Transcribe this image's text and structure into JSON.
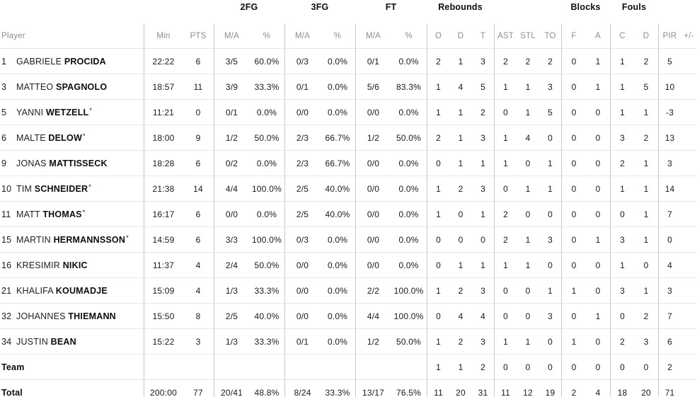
{
  "table": {
    "star_mark": "*",
    "groups": {
      "fg2": "2FG",
      "fg3": "3FG",
      "ft": "FT",
      "rebounds": "Rebounds",
      "blocks": "Blocks",
      "fouls": "Fouls"
    },
    "headers": {
      "player": "Player",
      "min": "Min",
      "pts": "PTS",
      "ma": "M/A",
      "pct": "%",
      "reb_o": "O",
      "reb_d": "D",
      "reb_t": "T",
      "ast": "AST",
      "stl": "STL",
      "to": "TO",
      "blk_f": "F",
      "blk_a": "A",
      "foul_c": "C",
      "foul_d": "D",
      "pir": "PIR",
      "pm": "+/-"
    },
    "rows": [
      {
        "type": "player",
        "num": "1",
        "first": "GABRIELE",
        "last": "PROCIDA",
        "star": false,
        "min": "22:22",
        "pts": "6",
        "fg2_ma": "3/5",
        "fg2_pct": "60.0%",
        "fg3_ma": "0/3",
        "fg3_pct": "0.0%",
        "ft_ma": "0/1",
        "ft_pct": "0.0%",
        "reb_o": "2",
        "reb_d": "1",
        "reb_t": "3",
        "ast": "2",
        "stl": "2",
        "to": "2",
        "blk_f": "0",
        "blk_a": "1",
        "foul_c": "1",
        "foul_d": "2",
        "pir": "5",
        "pm": ""
      },
      {
        "type": "player",
        "num": "3",
        "first": "MATTEO",
        "last": "SPAGNOLO",
        "star": false,
        "min": "18:57",
        "pts": "11",
        "fg2_ma": "3/9",
        "fg2_pct": "33.3%",
        "fg3_ma": "0/1",
        "fg3_pct": "0.0%",
        "ft_ma": "5/6",
        "ft_pct": "83.3%",
        "reb_o": "1",
        "reb_d": "4",
        "reb_t": "5",
        "ast": "1",
        "stl": "1",
        "to": "3",
        "blk_f": "0",
        "blk_a": "1",
        "foul_c": "1",
        "foul_d": "5",
        "pir": "10",
        "pm": ""
      },
      {
        "type": "player",
        "num": "5",
        "first": "YANNI",
        "last": "WETZELL",
        "star": true,
        "min": "11:21",
        "pts": "0",
        "fg2_ma": "0/1",
        "fg2_pct": "0.0%",
        "fg3_ma": "0/0",
        "fg3_pct": "0.0%",
        "ft_ma": "0/0",
        "ft_pct": "0.0%",
        "reb_o": "1",
        "reb_d": "1",
        "reb_t": "2",
        "ast": "0",
        "stl": "1",
        "to": "5",
        "blk_f": "0",
        "blk_a": "0",
        "foul_c": "1",
        "foul_d": "1",
        "pir": "-3",
        "pm": ""
      },
      {
        "type": "player",
        "num": "6",
        "first": "MALTE",
        "last": "DELOW",
        "star": true,
        "min": "18:00",
        "pts": "9",
        "fg2_ma": "1/2",
        "fg2_pct": "50.0%",
        "fg3_ma": "2/3",
        "fg3_pct": "66.7%",
        "ft_ma": "1/2",
        "ft_pct": "50.0%",
        "reb_o": "2",
        "reb_d": "1",
        "reb_t": "3",
        "ast": "1",
        "stl": "4",
        "to": "0",
        "blk_f": "0",
        "blk_a": "0",
        "foul_c": "3",
        "foul_d": "2",
        "pir": "13",
        "pm": ""
      },
      {
        "type": "player",
        "num": "9",
        "first": "JONAS",
        "last": "MATTISSECK",
        "star": false,
        "min": "18:28",
        "pts": "6",
        "fg2_ma": "0/2",
        "fg2_pct": "0.0%",
        "fg3_ma": "2/3",
        "fg3_pct": "66.7%",
        "ft_ma": "0/0",
        "ft_pct": "0.0%",
        "reb_o": "0",
        "reb_d": "1",
        "reb_t": "1",
        "ast": "1",
        "stl": "0",
        "to": "1",
        "blk_f": "0",
        "blk_a": "0",
        "foul_c": "2",
        "foul_d": "1",
        "pir": "3",
        "pm": ""
      },
      {
        "type": "player",
        "num": "10",
        "first": "TIM",
        "last": "SCHNEIDER",
        "star": true,
        "min": "21:38",
        "pts": "14",
        "fg2_ma": "4/4",
        "fg2_pct": "100.0%",
        "fg3_ma": "2/5",
        "fg3_pct": "40.0%",
        "ft_ma": "0/0",
        "ft_pct": "0.0%",
        "reb_o": "1",
        "reb_d": "2",
        "reb_t": "3",
        "ast": "0",
        "stl": "1",
        "to": "1",
        "blk_f": "0",
        "blk_a": "0",
        "foul_c": "1",
        "foul_d": "1",
        "pir": "14",
        "pm": ""
      },
      {
        "type": "player",
        "num": "11",
        "first": "MATT",
        "last": "THOMAS",
        "star": true,
        "min": "16:17",
        "pts": "6",
        "fg2_ma": "0/0",
        "fg2_pct": "0.0%",
        "fg3_ma": "2/5",
        "fg3_pct": "40.0%",
        "ft_ma": "0/0",
        "ft_pct": "0.0%",
        "reb_o": "1",
        "reb_d": "0",
        "reb_t": "1",
        "ast": "2",
        "stl": "0",
        "to": "0",
        "blk_f": "0",
        "blk_a": "0",
        "foul_c": "0",
        "foul_d": "1",
        "pir": "7",
        "pm": ""
      },
      {
        "type": "player",
        "num": "15",
        "first": "MARTIN",
        "last": "HERMANNSSON",
        "star": true,
        "min": "14:59",
        "pts": "6",
        "fg2_ma": "3/3",
        "fg2_pct": "100.0%",
        "fg3_ma": "0/3",
        "fg3_pct": "0.0%",
        "ft_ma": "0/0",
        "ft_pct": "0.0%",
        "reb_o": "0",
        "reb_d": "0",
        "reb_t": "0",
        "ast": "2",
        "stl": "1",
        "to": "3",
        "blk_f": "0",
        "blk_a": "1",
        "foul_c": "3",
        "foul_d": "1",
        "pir": "0",
        "pm": ""
      },
      {
        "type": "player",
        "num": "16",
        "first": "KRESIMIR",
        "last": "NIKIC",
        "star": false,
        "min": "11:37",
        "pts": "4",
        "fg2_ma": "2/4",
        "fg2_pct": "50.0%",
        "fg3_ma": "0/0",
        "fg3_pct": "0.0%",
        "ft_ma": "0/0",
        "ft_pct": "0.0%",
        "reb_o": "0",
        "reb_d": "1",
        "reb_t": "1",
        "ast": "1",
        "stl": "1",
        "to": "0",
        "blk_f": "0",
        "blk_a": "0",
        "foul_c": "1",
        "foul_d": "0",
        "pir": "4",
        "pm": ""
      },
      {
        "type": "player",
        "num": "21",
        "first": "KHALIFA",
        "last": "KOUMADJE",
        "star": false,
        "min": "15:09",
        "pts": "4",
        "fg2_ma": "1/3",
        "fg2_pct": "33.3%",
        "fg3_ma": "0/0",
        "fg3_pct": "0.0%",
        "ft_ma": "2/2",
        "ft_pct": "100.0%",
        "reb_o": "1",
        "reb_d": "2",
        "reb_t": "3",
        "ast": "0",
        "stl": "0",
        "to": "1",
        "blk_f": "1",
        "blk_a": "0",
        "foul_c": "3",
        "foul_d": "1",
        "pir": "3",
        "pm": ""
      },
      {
        "type": "player",
        "num": "32",
        "first": "JOHANNES",
        "last": "THIEMANN",
        "star": false,
        "min": "15:50",
        "pts": "8",
        "fg2_ma": "2/5",
        "fg2_pct": "40.0%",
        "fg3_ma": "0/0",
        "fg3_pct": "0.0%",
        "ft_ma": "4/4",
        "ft_pct": "100.0%",
        "reb_o": "0",
        "reb_d": "4",
        "reb_t": "4",
        "ast": "0",
        "stl": "0",
        "to": "3",
        "blk_f": "0",
        "blk_a": "1",
        "foul_c": "0",
        "foul_d": "2",
        "pir": "7",
        "pm": ""
      },
      {
        "type": "player",
        "num": "34",
        "first": "JUSTIN",
        "last": "BEAN",
        "star": false,
        "min": "15:22",
        "pts": "3",
        "fg2_ma": "1/3",
        "fg2_pct": "33.3%",
        "fg3_ma": "0/1",
        "fg3_pct": "0.0%",
        "ft_ma": "1/2",
        "ft_pct": "50.0%",
        "reb_o": "1",
        "reb_d": "2",
        "reb_t": "3",
        "ast": "1",
        "stl": "1",
        "to": "0",
        "blk_f": "1",
        "blk_a": "0",
        "foul_c": "2",
        "foul_d": "3",
        "pir": "6",
        "pm": ""
      },
      {
        "type": "team",
        "label": "Team",
        "min": "",
        "pts": "",
        "fg2_ma": "",
        "fg2_pct": "",
        "fg3_ma": "",
        "fg3_pct": "",
        "ft_ma": "",
        "ft_pct": "",
        "reb_o": "1",
        "reb_d": "1",
        "reb_t": "2",
        "ast": "0",
        "stl": "0",
        "to": "0",
        "blk_f": "0",
        "blk_a": "0",
        "foul_c": "0",
        "foul_d": "0",
        "pir": "2",
        "pm": ""
      },
      {
        "type": "total",
        "label": "Total",
        "min": "200:00",
        "pts": "77",
        "fg2_ma": "20/41",
        "fg2_pct": "48.8%",
        "fg3_ma": "8/24",
        "fg3_pct": "33.3%",
        "ft_ma": "13/17",
        "ft_pct": "76.5%",
        "reb_o": "11",
        "reb_d": "20",
        "reb_t": "31",
        "ast": "11",
        "stl": "12",
        "to": "19",
        "blk_f": "2",
        "blk_a": "4",
        "foul_c": "18",
        "foul_d": "20",
        "pir": "71",
        "pm": ""
      }
    ]
  }
}
